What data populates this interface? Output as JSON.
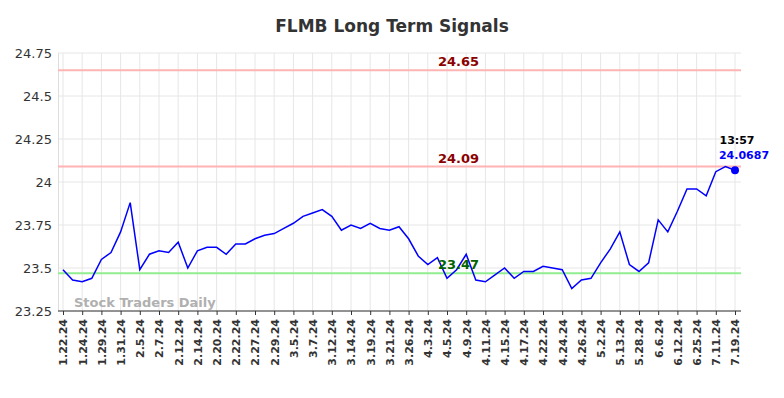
{
  "chart_data": {
    "type": "line",
    "title": "FLMB Long Term Signals",
    "categories": [
      "1.22.24",
      null,
      "1.24.24",
      null,
      "1.29.24",
      null,
      "1.31.24",
      null,
      "2.5.24",
      null,
      "2.7.24",
      null,
      "2.12.24",
      null,
      "2.14.24",
      null,
      "2.20.24",
      null,
      "2.22.24",
      null,
      "2.27.24",
      null,
      "2.29.24",
      null,
      "3.5.24",
      null,
      "3.7.24",
      null,
      "3.12.24",
      null,
      "3.14.24",
      null,
      "3.19.24",
      null,
      "3.21.24",
      null,
      "3.26.24",
      null,
      "4.3.24",
      null,
      "4.5.24",
      null,
      "4.9.24",
      null,
      "4.11.24",
      null,
      "4.15.24",
      null,
      "4.17.24",
      null,
      "4.22.24",
      null,
      "4.24.24",
      null,
      "4.26.24",
      null,
      "5.2.24",
      null,
      "5.13.24",
      null,
      "5.28.24",
      null,
      "6.6.24",
      null,
      "6.12.24",
      null,
      "6.25.24",
      null,
      "7.11.24",
      null,
      "7.19.24"
    ],
    "values": [
      23.49,
      23.43,
      23.42,
      23.44,
      23.55,
      23.59,
      23.71,
      23.88,
      23.49,
      23.58,
      23.6,
      23.59,
      23.65,
      23.5,
      23.6,
      23.62,
      23.62,
      23.58,
      23.64,
      23.64,
      23.67,
      23.69,
      23.7,
      23.73,
      23.76,
      23.8,
      23.82,
      23.84,
      23.8,
      23.72,
      23.75,
      23.73,
      23.76,
      23.73,
      23.72,
      23.74,
      23.67,
      23.57,
      23.52,
      23.56,
      23.44,
      23.49,
      23.58,
      23.43,
      23.42,
      23.46,
      23.5,
      23.44,
      23.48,
      23.48,
      23.51,
      23.5,
      23.49,
      23.38,
      23.43,
      23.44,
      23.53,
      23.61,
      23.71,
      23.52,
      23.48,
      23.53,
      23.78,
      23.71,
      23.83,
      23.96,
      23.96,
      23.92,
      24.06,
      24.09,
      24.0687
    ],
    "color": "#0000ff",
    "ylim": [
      23.25,
      24.75
    ],
    "yticks": [
      23.25,
      23.5,
      23.75,
      24,
      24.25,
      24.5,
      24.75
    ],
    "grid": true,
    "reference_lines": [
      {
        "value": 24.65,
        "label": "24.65",
        "color": "#ffb3b3",
        "label_color": "#8b0000"
      },
      {
        "value": 24.09,
        "label": "24.09",
        "color": "#ffb3b3",
        "label_color": "#8b0000"
      },
      {
        "value": 23.47,
        "label": "23.47",
        "color": "#90ee90",
        "label_color": "#006400"
      }
    ],
    "last_point": {
      "time": "13:57",
      "label": "24.0687"
    },
    "watermark": "Stock Traders Daily"
  }
}
